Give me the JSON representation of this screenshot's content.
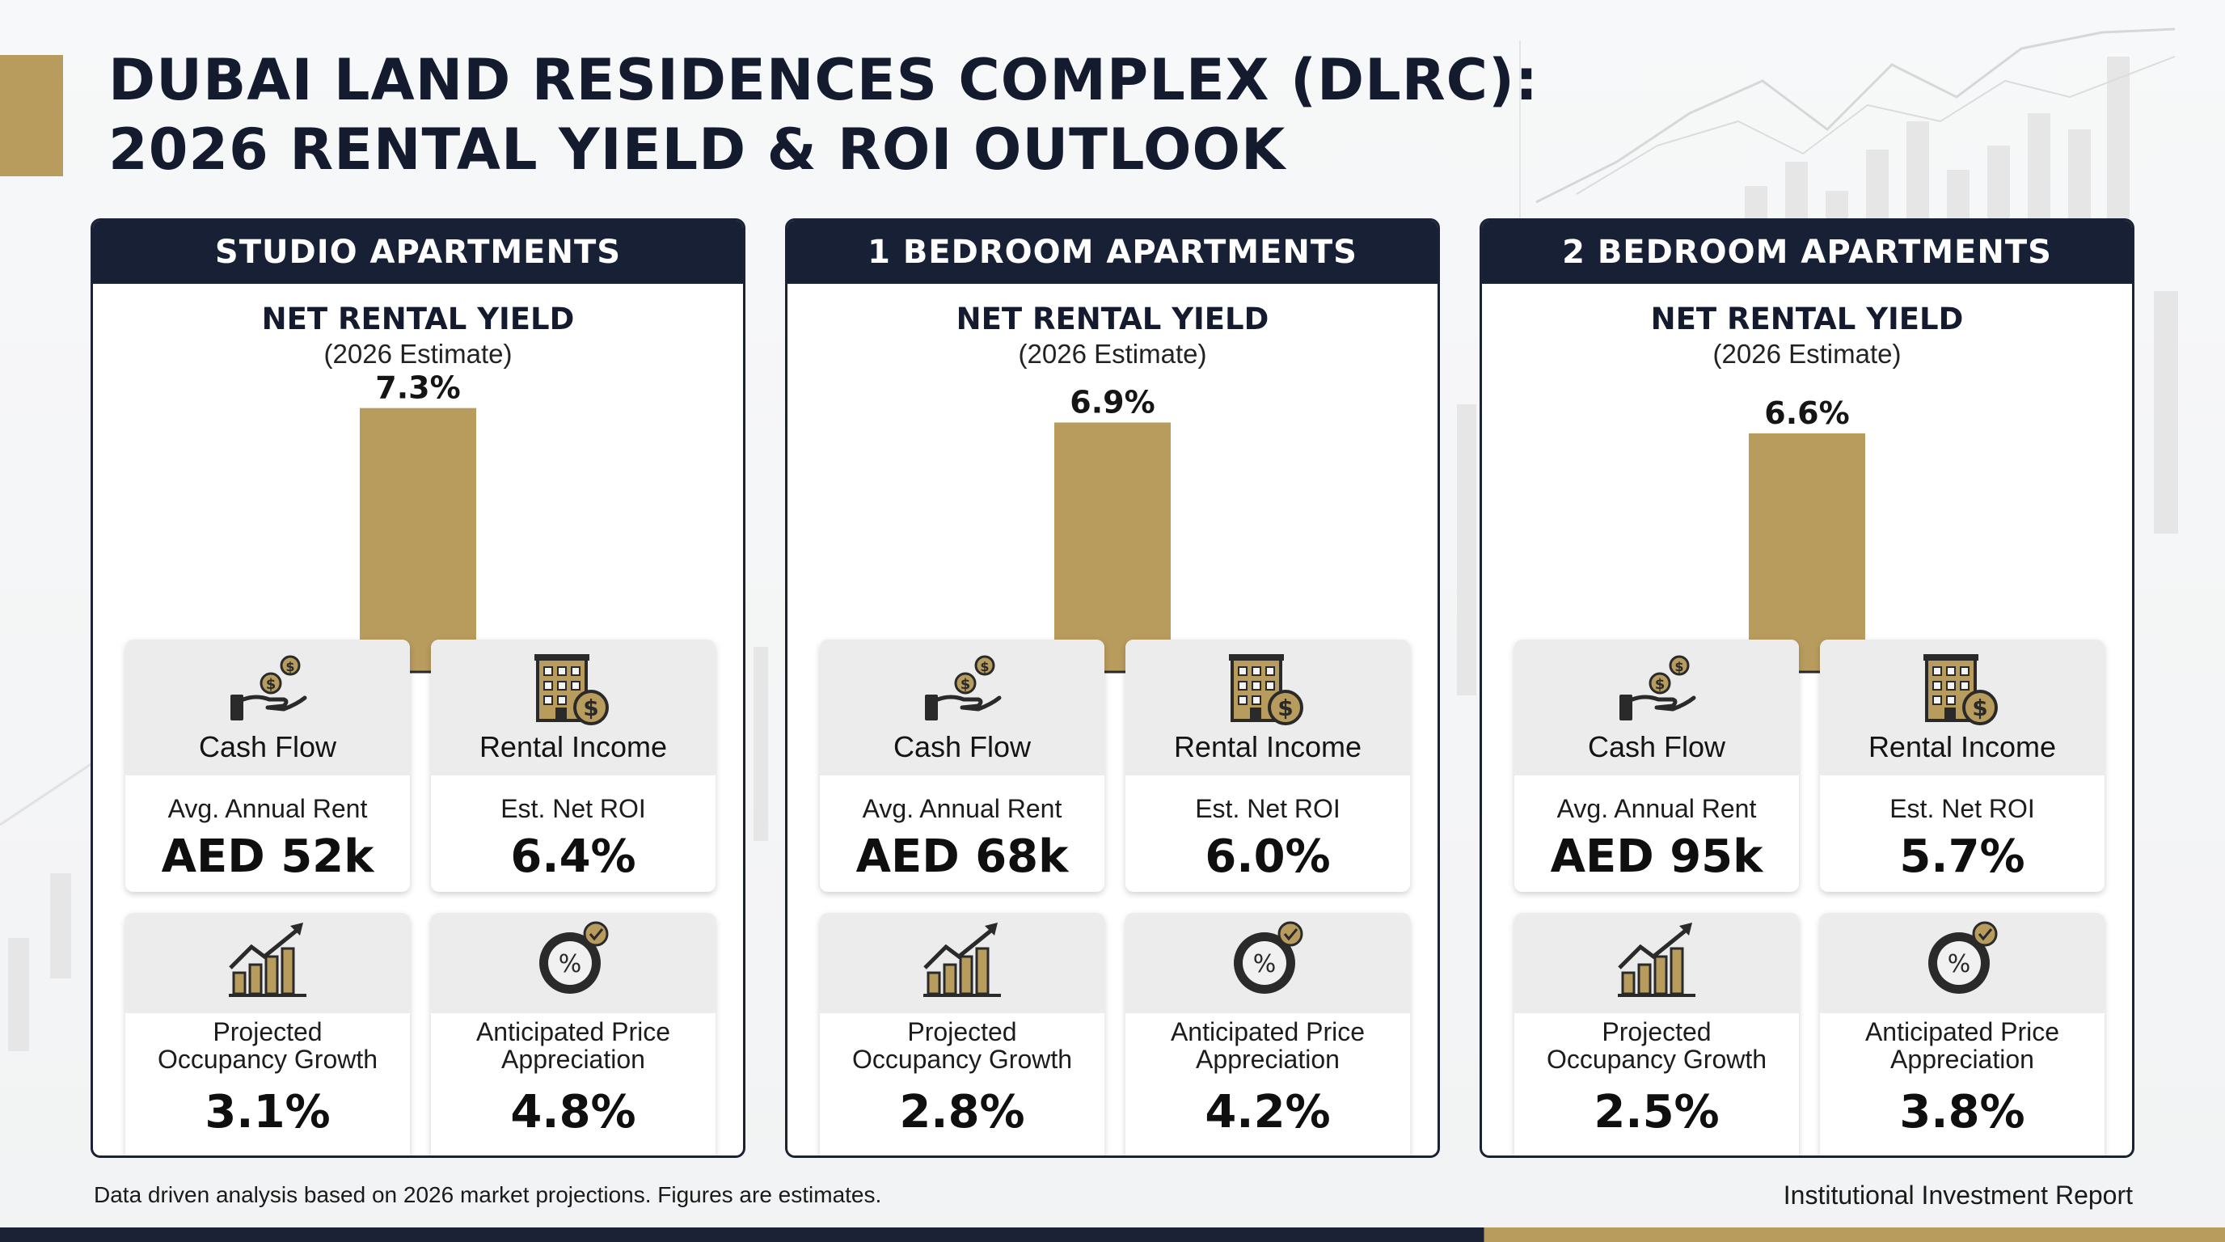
{
  "title": {
    "line1": "DUBAI LAND RESIDENCES COMPLEX (DLRC):",
    "line2": "2026 RENTAL YIELD & ROI OUTLOOK"
  },
  "colors": {
    "navy": "#182035",
    "gold": "#b89c5e",
    "card_top": "#ececed"
  },
  "panels": [
    {
      "header": "STUDIO APARTMENTS",
      "chart_title": "NET RENTAL YIELD",
      "chart_subtitle": "(2026 Estimate)",
      "cards": [
        {
          "category": "Cash Flow",
          "icon": "cash-flow-icon",
          "label": "Avg. Annual Rent",
          "value": "AED 52k"
        },
        {
          "category": "Rental Income",
          "icon": "building-dollar-icon",
          "label": "Est. Net ROI",
          "value": "6.4%"
        },
        {
          "icon": "growth-chart-icon",
          "label_line1": "Projected",
          "label_line2": "Occupancy Growth",
          "value": "3.1%"
        },
        {
          "icon": "percent-badge-icon",
          "label_line1": "Anticipated Price",
          "label_line2": "Appreciation",
          "value": "4.8%"
        }
      ]
    },
    {
      "header": "1 BEDROOM APARTMENTS",
      "chart_title": "NET RENTAL YIELD",
      "chart_subtitle": "(2026 Estimate)",
      "cards": [
        {
          "category": "Cash Flow",
          "icon": "cash-flow-icon",
          "label": "Avg. Annual Rent",
          "value": "AED 68k"
        },
        {
          "category": "Rental Income",
          "icon": "building-dollar-icon",
          "label": "Est. Net ROI",
          "value": "6.0%"
        },
        {
          "icon": "growth-chart-icon",
          "label_line1": "Projected",
          "label_line2": "Occupancy Growth",
          "value": "2.8%"
        },
        {
          "icon": "percent-badge-icon",
          "label_line1": "Anticipated Price",
          "label_line2": "Appreciation",
          "value": "4.2%"
        }
      ]
    },
    {
      "header": "2 BEDROOM APARTMENTS",
      "chart_title": "NET RENTAL YIELD",
      "chart_subtitle": "(2026 Estimate)",
      "cards": [
        {
          "category": "Cash Flow",
          "icon": "cash-flow-icon",
          "label": "Avg. Annual Rent",
          "value": "AED 95k"
        },
        {
          "category": "Rental Income",
          "icon": "building-dollar-icon",
          "label": "Est. Net ROI",
          "value": "5.7%"
        },
        {
          "icon": "growth-chart-icon",
          "label_line1": "Projected",
          "label_line2": "Occupancy Growth",
          "value": "2.5%"
        },
        {
          "icon": "percent-badge-icon",
          "label_line1": "Anticipated Price",
          "label_line2": "Appreciation",
          "value": "3.8%"
        }
      ]
    }
  ],
  "chart_data": [
    {
      "type": "bar",
      "title": "NET RENTAL YIELD",
      "subtitle": "(2026 Estimate)",
      "categories": [
        ""
      ],
      "values": [
        7.3
      ],
      "value_labels": [
        "7.3%"
      ],
      "ylim": [
        0,
        8.5
      ],
      "grid": false
    },
    {
      "type": "bar",
      "title": "NET RENTAL YIELD",
      "subtitle": "(2026 Estimate)",
      "categories": [
        ""
      ],
      "values": [
        6.9
      ],
      "value_labels": [
        "6.9%"
      ],
      "ylim": [
        0,
        8.5
      ],
      "grid": false
    },
    {
      "type": "bar",
      "title": "NET RENTAL YIELD",
      "subtitle": "(2026 Estimate)",
      "categories": [
        ""
      ],
      "values": [
        6.6
      ],
      "value_labels": [
        "6.6%"
      ],
      "ylim": [
        0,
        8.5
      ],
      "grid": false
    }
  ],
  "footer": {
    "left": "Data driven analysis based on 2026 market projections. Figures are estimates.",
    "right": "Institutional Investment Report"
  }
}
